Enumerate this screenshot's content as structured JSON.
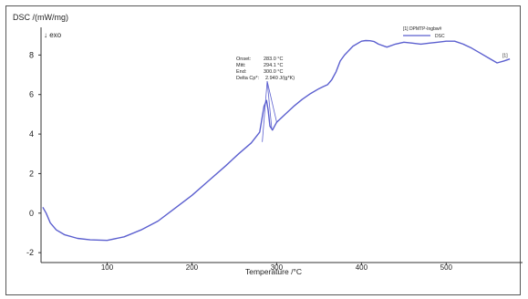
{
  "chart_data": {
    "type": "line",
    "ylabel": "DSC /(mW/mg)",
    "exo_label": "↓ exo",
    "xlabel": "Temperature /°C",
    "xlim": [
      22,
      590
    ],
    "ylim": [
      -2.5,
      9.4
    ],
    "x_ticks": [
      100,
      200,
      300,
      400,
      500
    ],
    "y_ticks": [
      -2,
      0,
      2,
      4,
      6,
      8
    ],
    "grid": false,
    "legend": {
      "position": "top-right",
      "header": "[1] DPMTP-Ingbw#",
      "entries": [
        {
          "label": "DSC",
          "color": "#5b5fcf"
        }
      ]
    },
    "series": [
      {
        "color": "#5b5fcf",
        "x": [
          24,
          28,
          33,
          40,
          50,
          65,
          80,
          100,
          120,
          140,
          160,
          180,
          200,
          220,
          240,
          255,
          270,
          280,
          285,
          288,
          290,
          292,
          295,
          300,
          310,
          320,
          330,
          340,
          350,
          355,
          360,
          365,
          370,
          375,
          380,
          390,
          400,
          405,
          410,
          415,
          420,
          430,
          440,
          450,
          460,
          470,
          480,
          490,
          500,
          510,
          520,
          530,
          540,
          550,
          560,
          568,
          575
        ],
        "values": [
          0.3,
          0.0,
          -0.5,
          -0.85,
          -1.1,
          -1.28,
          -1.35,
          -1.38,
          -1.2,
          -0.85,
          -0.4,
          0.25,
          0.9,
          1.65,
          2.4,
          3.0,
          3.55,
          4.1,
          5.4,
          5.7,
          5.2,
          4.4,
          4.2,
          4.6,
          5.0,
          5.4,
          5.75,
          6.05,
          6.3,
          6.4,
          6.5,
          6.75,
          7.15,
          7.7,
          8.0,
          8.45,
          8.7,
          8.73,
          8.72,
          8.68,
          8.55,
          8.4,
          8.55,
          8.65,
          8.6,
          8.55,
          8.6,
          8.65,
          8.7,
          8.7,
          8.55,
          8.35,
          8.1,
          7.85,
          7.6,
          7.7,
          7.8
        ]
      }
    ],
    "annotations": {
      "lines": [
        "Onset:",
        "Mitt:",
        "End:",
        "Delta Cp*:"
      ],
      "values": [
        "283.0 °C",
        "294.1 °C",
        "300.0 °C",
        "2.940 J/(g*K)"
      ]
    },
    "end_marker": "[1]"
  }
}
